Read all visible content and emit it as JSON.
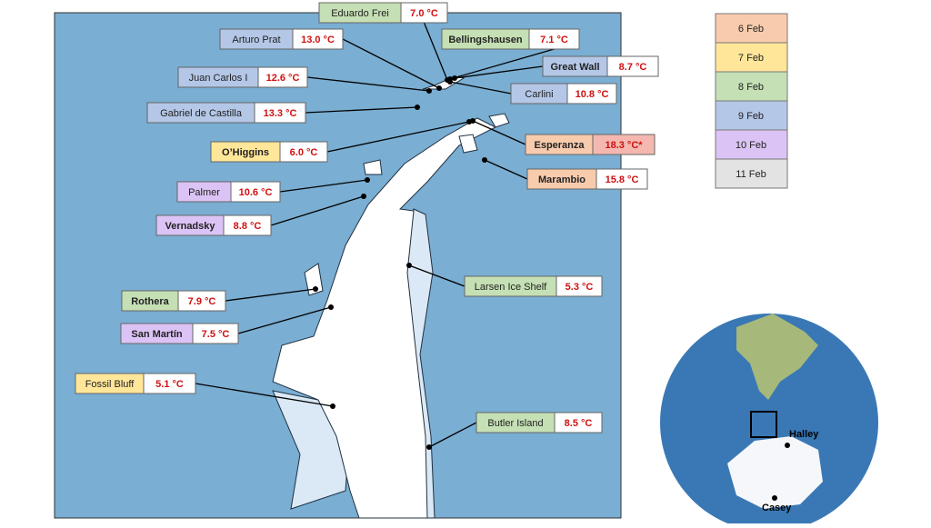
{
  "stations": [
    {
      "name": "Eduardo Frei",
      "temperature": "7.0 °C",
      "color": "#c5e0b4",
      "bold": false
    },
    {
      "name": "Arturo Prat",
      "temperature": "13.0 °C",
      "color": "#b4c7e7",
      "bold": false
    },
    {
      "name": "Bellingshausen",
      "temperature": "7.1 °C",
      "color": "#c5e0b4",
      "bold": true
    },
    {
      "name": "Juan Carlos I",
      "temperature": "12.6 °C",
      "color": "#b4c7e7",
      "bold": false
    },
    {
      "name": "Great Wall",
      "temperature": "8.7 °C",
      "color": "#b4c7e7",
      "bold": true
    },
    {
      "name": "Carlini",
      "temperature": "10.8 °C",
      "color": "#b4c7e7",
      "bold": false
    },
    {
      "name": "Gabriel de Castilla",
      "temperature": "13.3 °C",
      "color": "#b4c7e7",
      "bold": false
    },
    {
      "name": "O’Higgins",
      "temperature": "6.0 °C",
      "color": "#ffe699",
      "bold": true
    },
    {
      "name": "Esperanza",
      "temperature": "18.3 °C*",
      "color": "#f8cbad",
      "bold": true,
      "temperature_background": "#f4b8b0"
    },
    {
      "name": "Marambio",
      "temperature": "15.8 °C",
      "color": "#f8cbad",
      "bold": true
    },
    {
      "name": "Palmer",
      "temperature": "10.6 °C",
      "color": "#dcc3f5",
      "bold": false
    },
    {
      "name": "Vernadsky",
      "temperature": "8.8 °C",
      "color": "#dcc3f5",
      "bold": true
    },
    {
      "name": "Larsen Ice Shelf",
      "temperature": "5.3 °C",
      "color": "#c5e0b4",
      "bold": false
    },
    {
      "name": "Rothera",
      "temperature": "7.9 °C",
      "color": "#c5e0b4",
      "bold": true
    },
    {
      "name": "San Martín",
      "temperature": "7.5 °C",
      "color": "#dcc3f5",
      "bold": true
    },
    {
      "name": "Fossil Bluff",
      "temperature": "5.1 °C",
      "color": "#ffe699",
      "bold": false
    },
    {
      "name": "Butler Island",
      "temperature": "8.5 °C",
      "color": "#c5e0b4",
      "bold": false
    }
  ],
  "legend": [
    {
      "label": "6 Feb",
      "color": "#f8cbad"
    },
    {
      "label": "7 Feb",
      "color": "#ffe699"
    },
    {
      "label": "8 Feb",
      "color": "#c5e0b4"
    },
    {
      "label": "9 Feb",
      "color": "#b4c7e7"
    },
    {
      "label": "10 Feb",
      "color": "#dcc3f5"
    },
    {
      "label": "11 Feb",
      "color": "#e3e3e3"
    }
  ],
  "globe_labels": [
    "Halley",
    "Casey"
  ]
}
